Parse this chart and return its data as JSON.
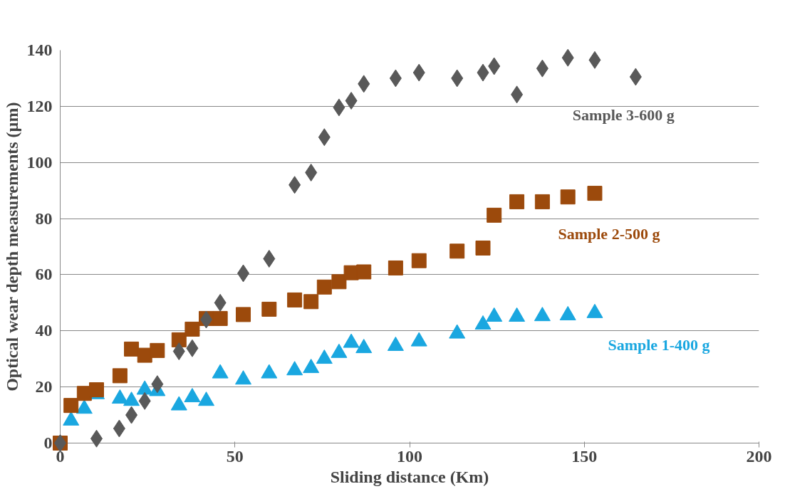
{
  "chart_data": {
    "type": "scatter",
    "xlabel": "Sliding distance (Km)",
    "ylabel": "Optical wear depth measurements (µm)",
    "xlim": [
      0,
      200
    ],
    "xticks": [
      0,
      50,
      100,
      150,
      200
    ],
    "ylim": [
      0,
      140
    ],
    "yticks": [
      0,
      20,
      40,
      60,
      80,
      100,
      120,
      140
    ],
    "grid": "y",
    "legend": false,
    "series": [
      {
        "name": "Sample 1-400 g",
        "color": "#1aa7e0",
        "marker": "triangle",
        "x": [
          3.1,
          6.9,
          10.4,
          17.1,
          20.4,
          24.2,
          27.8,
          34,
          37.8,
          41.8,
          45.8,
          52.4,
          59.8,
          67.1,
          71.8,
          75.6,
          79.8,
          83.3,
          86.9,
          96,
          102.7,
          113.6,
          121,
          124.2,
          130.7,
          138,
          145.3,
          153
        ],
        "values": [
          8,
          12.2,
          17.4,
          15.8,
          15,
          19,
          18.5,
          13.4,
          16.3,
          15,
          24.8,
          22.6,
          24.8,
          25.9,
          26.7,
          30,
          32.1,
          35.7,
          33.8,
          34.6,
          36.2,
          39,
          42.2,
          45,
          45,
          45.2,
          45.5,
          46.3
        ]
      },
      {
        "name": "Sample 2-500 g",
        "color": "#9c4a0c",
        "marker": "square",
        "x": [
          0,
          3.1,
          6.9,
          10.4,
          17.1,
          20.4,
          24.2,
          27.8,
          34,
          37.8,
          41.8,
          45.8,
          52.4,
          59.8,
          67.1,
          71.8,
          75.6,
          79.8,
          83.3,
          86.9,
          96,
          102.7,
          113.6,
          121,
          124.2,
          130.7,
          138,
          145.3,
          153
        ],
        "values": [
          0,
          13.4,
          17.7,
          19,
          24,
          33.5,
          31.3,
          33,
          36.8,
          40.6,
          44.4,
          44.4,
          45.8,
          47.7,
          51,
          50.4,
          55.6,
          57.5,
          60.7,
          61,
          62.4,
          65,
          68.4,
          69.5,
          81.2,
          86,
          86,
          87.7,
          89
        ]
      },
      {
        "name": "Sample 3-600 g",
        "color": "#595959",
        "marker": "diamond",
        "x": [
          0,
          10.4,
          16.9,
          20.4,
          24.2,
          27.8,
          34,
          37.8,
          41.8,
          45.8,
          52.4,
          59.8,
          67.1,
          71.8,
          75.6,
          79.8,
          83.3,
          86.9,
          96,
          102.7,
          113.6,
          121,
          124.2,
          130.7,
          138,
          145.3,
          153,
          164.7
        ],
        "values": [
          0,
          1.6,
          5.2,
          10,
          15,
          21,
          32.7,
          33.8,
          44,
          50,
          60.5,
          65.7,
          92,
          96.4,
          109,
          119.6,
          122,
          128,
          130,
          132,
          130,
          132,
          134.3,
          124.2,
          133.5,
          137.3,
          136.5,
          130.5
        ]
      }
    ]
  }
}
